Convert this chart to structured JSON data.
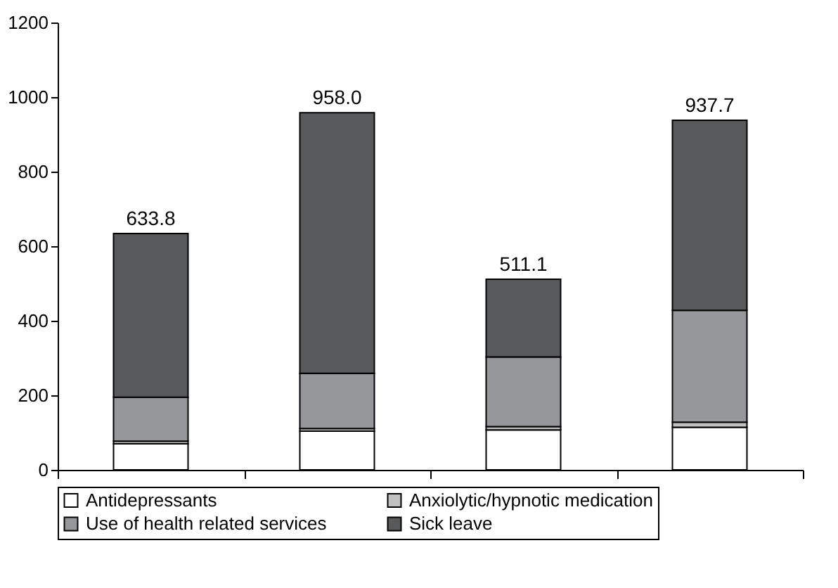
{
  "chart_data": {
    "type": "bar",
    "stacked": true,
    "categories": [
      null,
      null,
      null,
      null
    ],
    "series": [
      {
        "name": "Antidepressants",
        "color": "#ffffff",
        "values": [
          70,
          104,
          107,
          114
        ]
      },
      {
        "name": "Anxiolytic/hypnotic medication",
        "color": "#c0c0c0",
        "values": [
          7,
          7,
          9,
          14
        ]
      },
      {
        "name": "Use of health related services",
        "color": "#96979a",
        "values": [
          118,
          148,
          187,
          300
        ]
      },
      {
        "name": "Sick leave",
        "color": "#58595b",
        "values": [
          438.8,
          699,
          208.1,
          509.7
        ]
      }
    ],
    "totals": [
      "633.8",
      "958.0",
      "511.1",
      "937.7"
    ],
    "ylim": [
      0,
      1200
    ],
    "yticks": [
      0,
      200,
      400,
      600,
      800,
      1000,
      1200
    ],
    "grid": false,
    "legend": "bottom"
  }
}
